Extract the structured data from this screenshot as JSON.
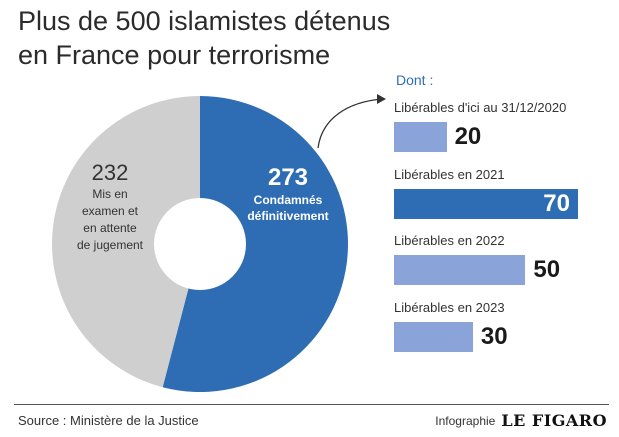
{
  "title_line1": "Plus de 500 islamistes détenus",
  "title_line2": "en France pour terrorisme",
  "dont_label": "Dont :",
  "colors": {
    "grey": "#cfcfcf",
    "blue": "#2e6db4",
    "light_blue": "#8aa4d9"
  },
  "chart_data": [
    {
      "type": "pie",
      "donut": true,
      "slices": [
        {
          "value": 273,
          "label_lines": [
            "Condamnés",
            "définitivement"
          ]
        },
        {
          "value": 232,
          "label_lines": [
            "Mis en",
            "examen et",
            "en attente",
            "de jugement"
          ]
        }
      ]
    },
    {
      "type": "bar",
      "orientation": "horizontal",
      "categories": [
        "Libérables d'ici au 31/12/2020",
        "Libérables en 2021",
        "Libérables en 2022",
        "Libérables en 2023"
      ],
      "values": [
        20,
        70,
        50,
        30
      ],
      "highlight_index": 1
    }
  ],
  "footer": {
    "source": "Source : Ministère de la Justice",
    "credit_prefix": "Infographie",
    "credit_brand": "LE FIGARO"
  }
}
